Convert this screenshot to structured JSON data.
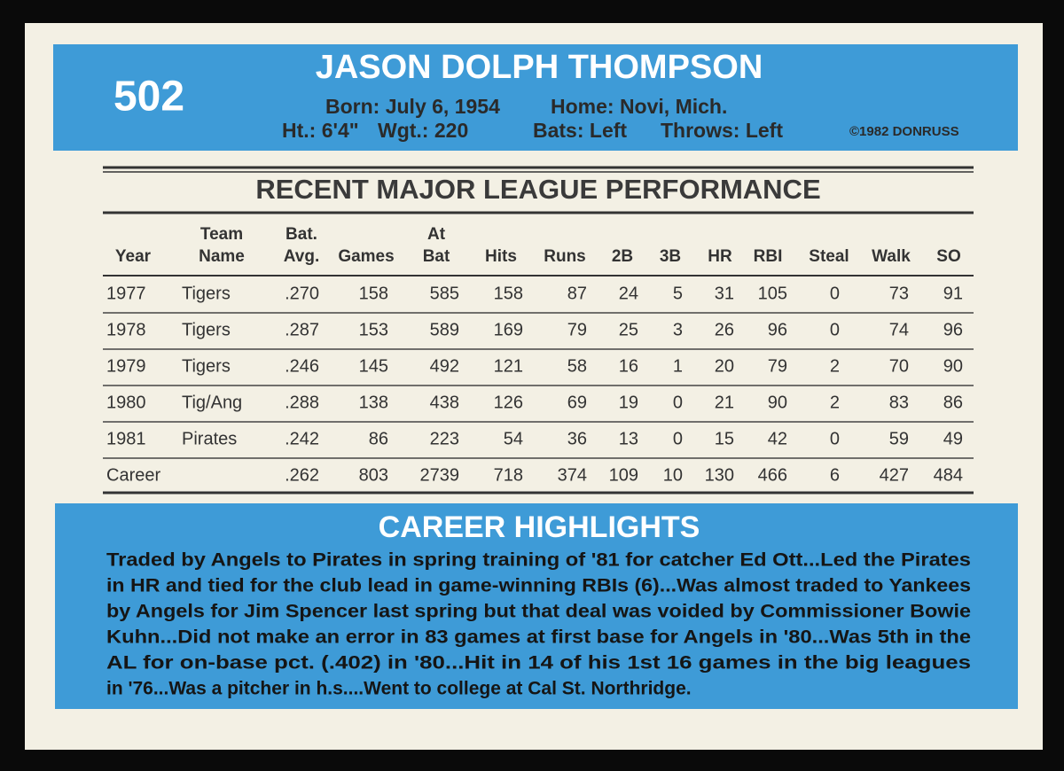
{
  "header": {
    "number": "502",
    "name": "JASON DOLPH THOMPSON",
    "born": "Born: July 6, 1954",
    "home": "Home: Novi, Mich.",
    "height": "Ht.: 6'4\"",
    "weight": "Wgt.: 220",
    "bats": "Bats: Left",
    "throws": "Throws: Left",
    "copyright": "©1982 DONRUSS"
  },
  "table": {
    "title": "RECENT MAJOR LEAGUE PERFORMANCE",
    "columns": [
      [
        "Year"
      ],
      [
        "Team",
        "Name"
      ],
      [
        "Bat.",
        "Avg."
      ],
      [
        "Games"
      ],
      [
        "At",
        "Bat"
      ],
      [
        "Hits"
      ],
      [
        "Runs"
      ],
      [
        "2B"
      ],
      [
        "3B"
      ],
      [
        "HR"
      ],
      [
        "RBI"
      ],
      [
        "Steal"
      ],
      [
        "Walk"
      ],
      [
        "SO"
      ]
    ],
    "rows": [
      [
        "1977",
        "Tigers",
        ".270",
        "158",
        "585",
        "158",
        "87",
        "24",
        "5",
        "31",
        "105",
        "0",
        "73",
        "91"
      ],
      [
        "1978",
        "Tigers",
        ".287",
        "153",
        "589",
        "169",
        "79",
        "25",
        "3",
        "26",
        "96",
        "0",
        "74",
        "96"
      ],
      [
        "1979",
        "Tigers",
        ".246",
        "145",
        "492",
        "121",
        "58",
        "16",
        "1",
        "20",
        "79",
        "2",
        "70",
        "90"
      ],
      [
        "1980",
        "Tig/Ang",
        ".288",
        "138",
        "438",
        "126",
        "69",
        "19",
        "0",
        "21",
        "90",
        "2",
        "83",
        "86"
      ],
      [
        "1981",
        "Pirates",
        ".242",
        "86",
        "223",
        "54",
        "36",
        "13",
        "0",
        "15",
        "42",
        "0",
        "59",
        "49"
      ],
      [
        "Career",
        "",
        ".262",
        "803",
        "2739",
        "718",
        "374",
        "109",
        "10",
        "130",
        "466",
        "6",
        "427",
        "484"
      ]
    ]
  },
  "highlights": {
    "title": "CAREER HIGHLIGHTS",
    "lines": [
      "Traded by Angels to Pirates in spring training of '81 for catcher Ed Ott...Led the Pirates",
      "in HR and tied for the club lead in game-winning RBIs (6)...Was almost traded to Yankees",
      "by Angels for Jim Spencer last spring but that deal was voided by Commissioner Bowie",
      "Kuhn...Did not make an error in 83 games at first base for Angels in '80...Was 5th in the",
      "AL for on-base pct. (.402) in '80...Hit in 14 of his 1st 16 games in the big leagues",
      "in '76...Was a pitcher in h.s....Went to college at Cal St. Northridge."
    ]
  }
}
